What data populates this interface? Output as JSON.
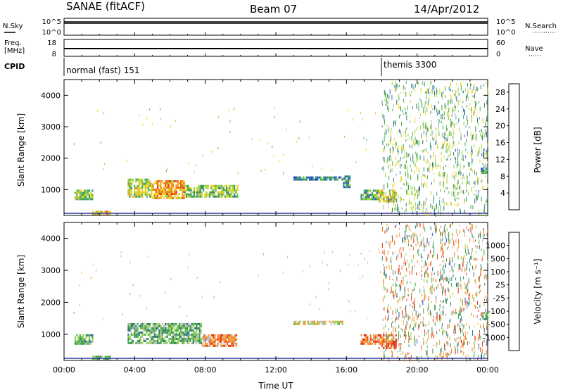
{
  "header": {
    "station": "SANAE (fitACF)",
    "beam": "Beam 07",
    "date": "14/Apr/2012"
  },
  "top_panels": {
    "nsky_label": "N.Sky",
    "nsearch_label": "N.Search",
    "nsky_ticks": [
      "10^5",
      "10^0"
    ],
    "nsearch_ticks": [
      "10^5",
      "10^0"
    ],
    "freq_label_1": "Freq.",
    "freq_label_2": "[MHz]",
    "freq_ticks": [
      "18",
      "8"
    ],
    "nave_label": "Nave",
    "nave_ticks": [
      "60",
      "0"
    ],
    "cpid_label": "CPID",
    "cpid_segments": [
      {
        "label": "normal (fast) 151",
        "start_hour": 0
      },
      {
        "label": "themis 3300",
        "start_hour": 18
      }
    ]
  },
  "chart_data": [
    {
      "type": "heatmap",
      "title": "",
      "xlabel": "",
      "ylabel": "Slant Range [km]",
      "colorbar_label": "Power [dB]",
      "x_range_hours": [
        0,
        24
      ],
      "ylim": [
        180,
        4500
      ],
      "y_ticks": [
        "1000",
        "2000",
        "3000",
        "4000"
      ],
      "colorbar_ticks": [
        "4",
        "8",
        "12",
        "16",
        "20",
        "24",
        "28"
      ],
      "colorbar_range": [
        0,
        30
      ],
      "colorbar_colors": [
        "#1f2bd8",
        "#2d5fb8",
        "#2f8a7a",
        "#4caf50",
        "#9fd23a",
        "#f0d21a",
        "#f2a020",
        "#ef6a12",
        "#e31a1a"
      ],
      "regions": [
        {
          "t0": 0.6,
          "t1": 1.6,
          "r0": 700,
          "r1": 1000,
          "level": 0.45
        },
        {
          "t0": 1.6,
          "t1": 2.6,
          "r0": 200,
          "r1": 330,
          "level": 0.7
        },
        {
          "t0": 3.6,
          "t1": 5.0,
          "r0": 800,
          "r1": 1350,
          "level": 0.5
        },
        {
          "t0": 5.0,
          "t1": 6.8,
          "r0": 750,
          "r1": 1300,
          "level": 0.75
        },
        {
          "t0": 6.8,
          "t1": 9.8,
          "r0": 800,
          "r1": 1150,
          "level": 0.45
        },
        {
          "t0": 13.0,
          "t1": 15.8,
          "r0": 1300,
          "r1": 1420,
          "level": 0.2
        },
        {
          "t0": 15.8,
          "t1": 16.2,
          "r0": 1050,
          "r1": 1450,
          "level": 0.25
        },
        {
          "t0": 16.8,
          "t1": 17.8,
          "r0": 700,
          "r1": 1000,
          "level": 0.35
        },
        {
          "t0": 17.8,
          "t1": 18.8,
          "r0": 600,
          "r1": 1000,
          "level": 0.6
        },
        {
          "t0": 23.6,
          "t1": 24.0,
          "r0": 1500,
          "r1": 1700,
          "level": 0.3
        }
      ]
    },
    {
      "type": "heatmap",
      "title": "",
      "xlabel": "Time UT",
      "ylabel": "Slant Range [km]",
      "colorbar_label": "Velocity [m s⁻¹]",
      "x_range_hours": [
        0,
        24
      ],
      "x_ticks": [
        "00:00",
        "04:00",
        "08:00",
        "12:00",
        "16:00",
        "20:00",
        "00:00"
      ],
      "ylim": [
        180,
        4500
      ],
      "y_ticks": [
        "1000",
        "2000",
        "3000",
        "4000"
      ],
      "colorbar_ticks": [
        "1000",
        "500",
        "100",
        "25",
        "-25",
        "-100",
        "-500",
        "-1000"
      ],
      "colorbar_colors": [
        "#3050b8",
        "#2f7a7a",
        "#4aa84a",
        "#8fd24a",
        "#bdbdbd",
        "#f0a030",
        "#f07820",
        "#ee3a12",
        "#e31a1a"
      ],
      "regions": [
        {
          "t0": 0.6,
          "t1": 1.6,
          "r0": 700,
          "r1": 1000,
          "level": 0.25
        },
        {
          "t0": 1.6,
          "t1": 2.6,
          "r0": 200,
          "r1": 330,
          "level": 0.3
        },
        {
          "t0": 3.6,
          "t1": 7.8,
          "r0": 700,
          "r1": 1350,
          "level": 0.3
        },
        {
          "t0": 7.8,
          "t1": 9.8,
          "r0": 650,
          "r1": 1000,
          "level": 0.7
        },
        {
          "t0": 13.0,
          "t1": 15.8,
          "r0": 1300,
          "r1": 1420,
          "level": 0.5
        },
        {
          "t0": 16.8,
          "t1": 17.8,
          "r0": 700,
          "r1": 1000,
          "level": 0.75
        },
        {
          "t0": 17.8,
          "t1": 18.8,
          "r0": 600,
          "r1": 1000,
          "level": 0.75
        },
        {
          "t0": 23.6,
          "t1": 24.0,
          "r0": 1500,
          "r1": 1700,
          "level": 0.25
        }
      ]
    }
  ]
}
